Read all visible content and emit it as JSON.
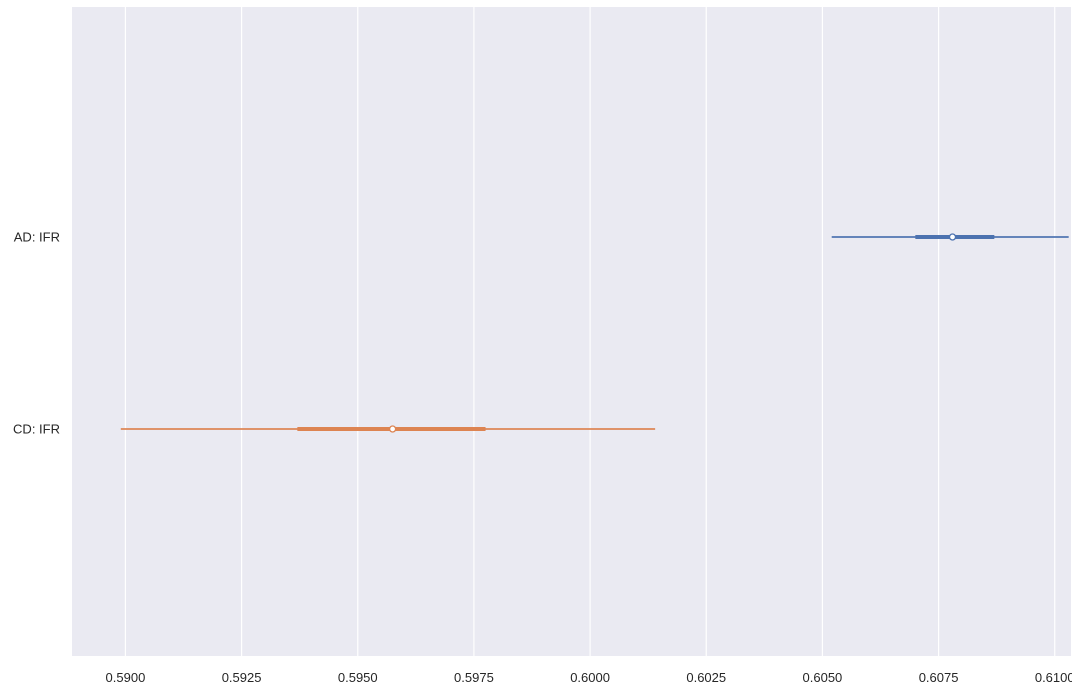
{
  "chart_data": {
    "type": "forest",
    "title": "",
    "xlabel": "",
    "ylabel": "",
    "xlim": [
      0.58885,
      0.61035
    ],
    "xticks": [
      0.59,
      0.5925,
      0.595,
      0.5975,
      0.6,
      0.6025,
      0.605,
      0.6075,
      0.61
    ],
    "xtick_labels": [
      "0.5900",
      "0.5925",
      "0.5950",
      "0.5975",
      "0.6000",
      "0.6025",
      "0.6050",
      "0.6075",
      "0.6100"
    ],
    "grid": true,
    "categories": [
      "AD: IFR",
      "CD: IFR"
    ],
    "series": [
      {
        "label": "AD: IFR",
        "color": "#4c72b0",
        "center": 0.6078,
        "inner": [
          0.607,
          0.6087
        ],
        "outer": [
          0.6052,
          0.6103
        ]
      },
      {
        "label": "CD: IFR",
        "color": "#dd8452",
        "center": 0.59575,
        "inner": [
          0.5937,
          0.59775
        ],
        "outer": [
          0.5899,
          0.6014
        ]
      }
    ]
  }
}
